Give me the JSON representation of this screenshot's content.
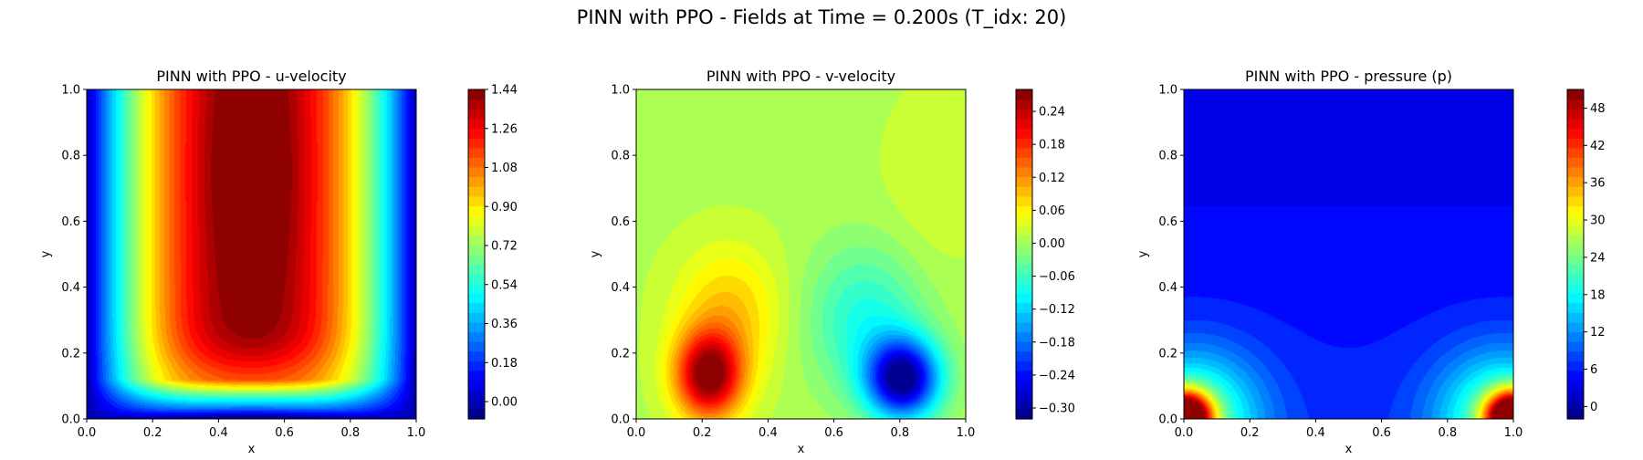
{
  "figure": {
    "suptitle": "PINN with PPO - Fields at Time = 0.200s (T_idx: 20)"
  },
  "chart_data": [
    {
      "type": "heatmap",
      "title": "PINN with PPO - u-velocity",
      "xlabel": "x",
      "ylabel": "y",
      "xlim": [
        0.0,
        1.0
      ],
      "ylim": [
        0.0,
        1.0
      ],
      "xticks": [
        "0.0",
        "0.2",
        "0.4",
        "0.6",
        "0.8",
        "1.0"
      ],
      "yticks": [
        "0.0",
        "0.2",
        "0.4",
        "0.6",
        "0.8",
        "1.0"
      ],
      "colormap": "jet",
      "colorbar_range": [
        -0.08,
        1.44
      ],
      "colorbar_ticks": [
        "0.00",
        "0.18",
        "0.36",
        "0.54",
        "0.72",
        "0.90",
        "1.08",
        "1.26",
        "1.44"
      ],
      "colorbar_values": [
        0.0,
        0.18,
        0.36,
        0.54,
        0.72,
        0.9,
        1.08,
        1.26,
        1.44
      ],
      "field": "u"
    },
    {
      "type": "heatmap",
      "title": "PINN with PPO - v-velocity",
      "xlabel": "x",
      "ylabel": "y",
      "xlim": [
        0.0,
        1.0
      ],
      "ylim": [
        0.0,
        1.0
      ],
      "xticks": [
        "0.0",
        "0.2",
        "0.4",
        "0.6",
        "0.8",
        "1.0"
      ],
      "yticks": [
        "0.0",
        "0.2",
        "0.4",
        "0.6",
        "0.8",
        "1.0"
      ],
      "colormap": "jet",
      "colorbar_range": [
        -0.32,
        0.28
      ],
      "colorbar_ticks": [
        "−0.30",
        "−0.24",
        "−0.18",
        "−0.12",
        "−0.06",
        "0.00",
        "0.06",
        "0.12",
        "0.18",
        "0.24"
      ],
      "colorbar_values": [
        -0.3,
        -0.24,
        -0.18,
        -0.12,
        -0.06,
        0.0,
        0.06,
        0.12,
        0.18,
        0.24
      ],
      "field": "v"
    },
    {
      "type": "heatmap",
      "title": "PINN with PPO - pressure (p)",
      "xlabel": "x",
      "ylabel": "y",
      "xlim": [
        0.0,
        1.0
      ],
      "ylim": [
        0.0,
        1.0
      ],
      "xticks": [
        "0.0",
        "0.2",
        "0.4",
        "0.6",
        "0.8",
        "1.0"
      ],
      "yticks": [
        "0.0",
        "0.2",
        "0.4",
        "0.6",
        "0.8",
        "1.0"
      ],
      "colormap": "jet",
      "colorbar_range": [
        -2,
        51
      ],
      "colorbar_ticks": [
        "0",
        "6",
        "12",
        "18",
        "24",
        "30",
        "36",
        "42",
        "48"
      ],
      "colorbar_values": [
        0,
        6,
        12,
        18,
        24,
        30,
        36,
        42,
        48
      ],
      "field": "p"
    }
  ]
}
